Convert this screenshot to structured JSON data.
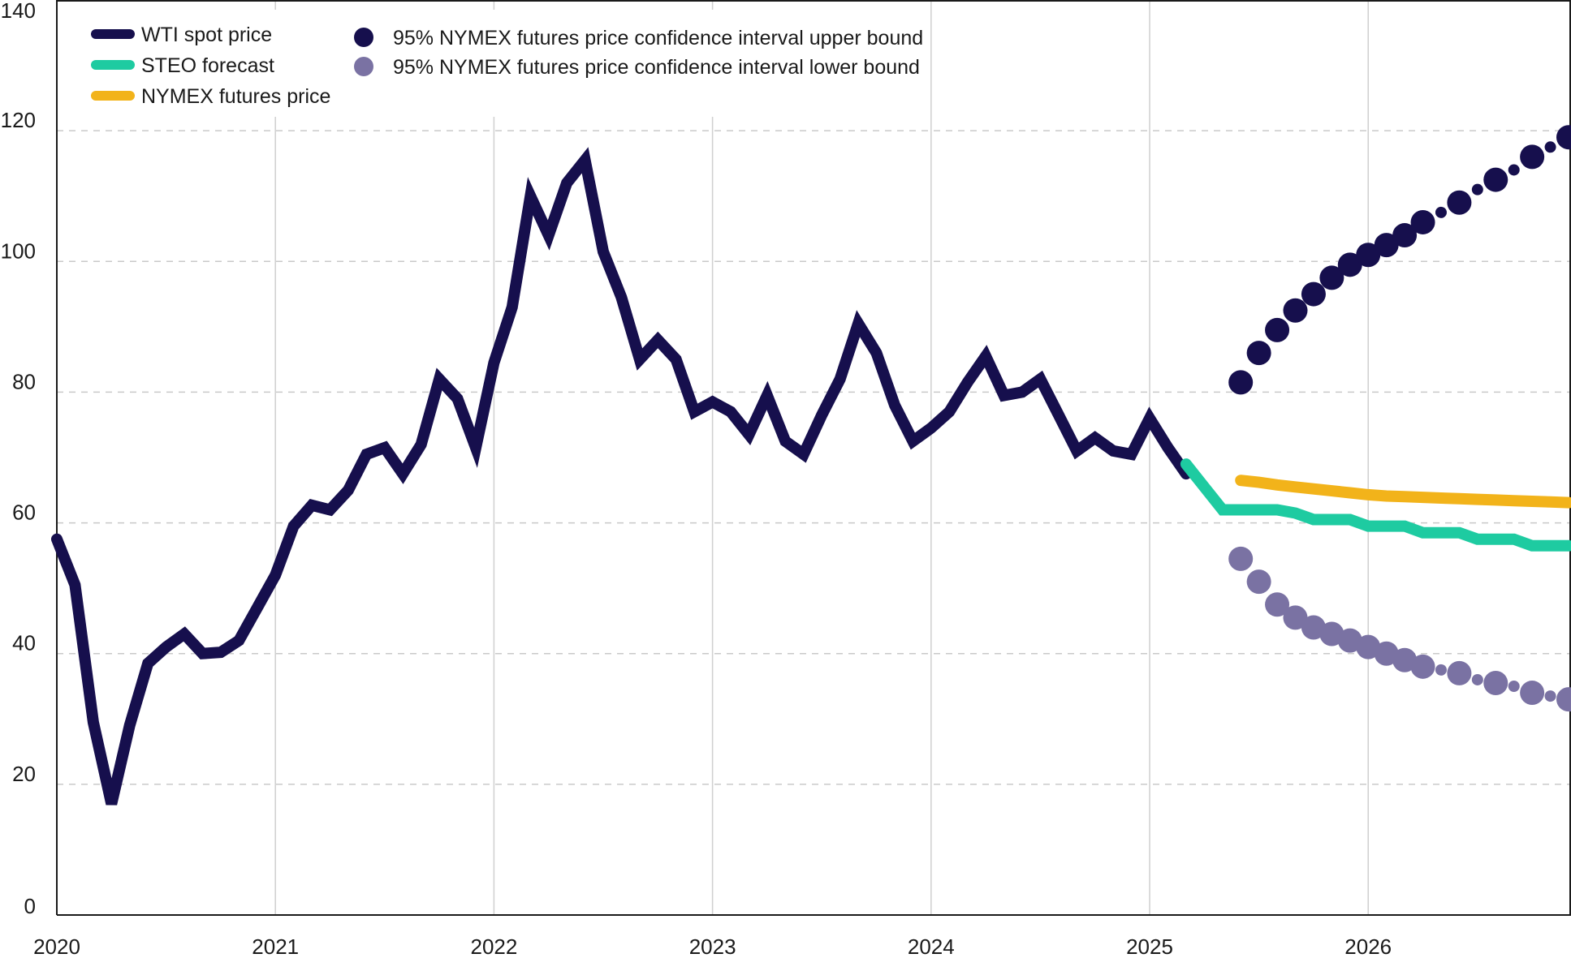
{
  "chart_data": {
    "type": "line",
    "title": "",
    "xlabel": "",
    "ylabel": "",
    "ylim": [
      0,
      140
    ],
    "xlim": [
      "2020-01",
      "2026-12"
    ],
    "grid": {
      "x": true,
      "y": true,
      "y_style": "dashed"
    },
    "legend_placement": "top-left",
    "y_ticks": [
      "0",
      "20",
      "40",
      "60",
      "80",
      "100",
      "120",
      "140"
    ],
    "x_ticks": [
      "2020",
      "2021",
      "2022",
      "2023",
      "2024",
      "2025",
      "2026"
    ],
    "series": [
      {
        "name": "WTI spot price",
        "kind": "line",
        "color": "#160f4d",
        "x": [
          "2020-01",
          "2020-02",
          "2020-03",
          "2020-04",
          "2020-05",
          "2020-06",
          "2020-07",
          "2020-08",
          "2020-09",
          "2020-10",
          "2020-11",
          "2020-12",
          "2021-01",
          "2021-02",
          "2021-03",
          "2021-04",
          "2021-05",
          "2021-06",
          "2021-07",
          "2021-08",
          "2021-09",
          "2021-10",
          "2021-11",
          "2021-12",
          "2022-01",
          "2022-02",
          "2022-03",
          "2022-04",
          "2022-05",
          "2022-06",
          "2022-07",
          "2022-08",
          "2022-09",
          "2022-10",
          "2022-11",
          "2022-12",
          "2023-01",
          "2023-02",
          "2023-03",
          "2023-04",
          "2023-05",
          "2023-06",
          "2023-07",
          "2023-08",
          "2023-09",
          "2023-10",
          "2023-11",
          "2023-12",
          "2024-01",
          "2024-02",
          "2024-03",
          "2024-04",
          "2024-05",
          "2024-06",
          "2024-07",
          "2024-08",
          "2024-09",
          "2024-10",
          "2024-11",
          "2024-12",
          "2025-01",
          "2025-02",
          "2025-03"
        ],
        "values": [
          57.5,
          50.5,
          29.5,
          17.0,
          29.0,
          38.5,
          41.0,
          43.0,
          40.0,
          40.2,
          42.0,
          47.0,
          52.0,
          59.5,
          62.7,
          62.0,
          65.0,
          70.5,
          71.5,
          67.5,
          72.0,
          82.0,
          79.0,
          71.5,
          84.5,
          93.0,
          110.0,
          104.0,
          112.0,
          115.5,
          101.5,
          94.5,
          85.0,
          88.0,
          85.0,
          77.0,
          78.5,
          77.0,
          73.5,
          79.5,
          72.5,
          70.5,
          76.5,
          82.0,
          90.5,
          86.0,
          78.0,
          72.5,
          74.5,
          77.0,
          81.5,
          85.5,
          79.5,
          80.0,
          82.0,
          76.5,
          71.0,
          73.0,
          71.0,
          70.5,
          76.0,
          71.5,
          67.5
        ]
      },
      {
        "name": "STEO forecast",
        "kind": "line",
        "color": "#1ecba1",
        "x": [
          "2025-03",
          "2025-04",
          "2025-05",
          "2025-06",
          "2025-07",
          "2025-08",
          "2025-09",
          "2025-10",
          "2025-11",
          "2025-12",
          "2026-01",
          "2026-02",
          "2026-03",
          "2026-04",
          "2026-05",
          "2026-06",
          "2026-07",
          "2026-08",
          "2026-09",
          "2026-10",
          "2026-11",
          "2026-12"
        ],
        "values": [
          69.0,
          65.5,
          62.0,
          62.0,
          62.0,
          62.0,
          61.5,
          60.5,
          60.5,
          60.5,
          59.5,
          59.5,
          59.5,
          58.5,
          58.5,
          58.5,
          57.5,
          57.5,
          57.5,
          56.5,
          56.5,
          56.5
        ]
      },
      {
        "name": "NYMEX futures price",
        "kind": "line",
        "color": "#f2b31a",
        "x": [
          "2025-06",
          "2025-07",
          "2025-08",
          "2025-09",
          "2025-10",
          "2025-11",
          "2025-12",
          "2026-01",
          "2026-02",
          "2026-03",
          "2026-04",
          "2026-05",
          "2026-06",
          "2026-07",
          "2026-08",
          "2026-09",
          "2026-10",
          "2026-11",
          "2026-12"
        ],
        "values": [
          66.5,
          66.2,
          65.8,
          65.5,
          65.2,
          64.9,
          64.6,
          64.3,
          64.1,
          64.0,
          63.9,
          63.8,
          63.7,
          63.6,
          63.5,
          63.4,
          63.3,
          63.2,
          63.1
        ]
      },
      {
        "name": "95% NYMEX futures price confidence interval upper bound",
        "kind": "scatter",
        "color": "#160f4d",
        "x": [
          "2025-06",
          "2025-07",
          "2025-08",
          "2025-09",
          "2025-10",
          "2025-11",
          "2025-12",
          "2026-01",
          "2026-02",
          "2026-03",
          "2026-04",
          "2026-05",
          "2026-06",
          "2026-07",
          "2026-08",
          "2026-09",
          "2026-10",
          "2026-11",
          "2026-12"
        ],
        "values": [
          81.5,
          86.0,
          89.5,
          92.5,
          95.0,
          97.5,
          99.5,
          101.0,
          102.5,
          104.0,
          106.0,
          107.5,
          109.0,
          111.0,
          112.5,
          114.0,
          116.0,
          117.5,
          119.0
        ]
      },
      {
        "name": "95% NYMEX futures price confidence interval lower bound",
        "kind": "scatter",
        "color": "#7a72a3",
        "x": [
          "2025-06",
          "2025-07",
          "2025-08",
          "2025-09",
          "2025-10",
          "2025-11",
          "2025-12",
          "2026-01",
          "2026-02",
          "2026-03",
          "2026-04",
          "2026-05",
          "2026-06",
          "2026-07",
          "2026-08",
          "2026-09",
          "2026-10",
          "2026-11",
          "2026-12"
        ],
        "values": [
          54.5,
          51.0,
          47.5,
          45.5,
          44.0,
          43.0,
          42.0,
          41.0,
          40.0,
          39.0,
          38.0,
          37.5,
          37.0,
          36.0,
          35.5,
          35.0,
          34.0,
          33.5,
          33.0
        ]
      }
    ]
  }
}
